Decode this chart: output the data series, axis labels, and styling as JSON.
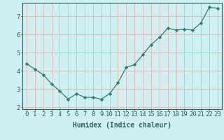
{
  "x": [
    0,
    1,
    2,
    3,
    4,
    5,
    6,
    7,
    8,
    9,
    10,
    11,
    12,
    13,
    14,
    15,
    16,
    17,
    18,
    19,
    20,
    21,
    22,
    23
  ],
  "y": [
    4.4,
    4.1,
    3.8,
    3.3,
    2.9,
    2.45,
    2.75,
    2.55,
    2.55,
    2.45,
    2.75,
    3.35,
    4.2,
    4.35,
    4.9,
    5.45,
    5.85,
    6.35,
    6.25,
    6.3,
    6.25,
    6.65,
    7.5,
    7.45
  ],
  "line_color": "#2e7d6e",
  "marker": "D",
  "marker_size": 2.2,
  "bg_color": "#cff0f0",
  "grid_color_major": "#e8b8b8",
  "xlabel": "Humidex (Indice chaleur)",
  "xlabel_fontsize": 7,
  "tick_fontsize": 6.5,
  "xlim": [
    -0.5,
    23.5
  ],
  "ylim": [
    1.9,
    7.75
  ],
  "yticks": [
    2,
    3,
    4,
    5,
    6,
    7
  ],
  "xticks": [
    0,
    1,
    2,
    3,
    4,
    5,
    6,
    7,
    8,
    9,
    10,
    11,
    12,
    13,
    14,
    15,
    16,
    17,
    18,
    19,
    20,
    21,
    22,
    23
  ]
}
